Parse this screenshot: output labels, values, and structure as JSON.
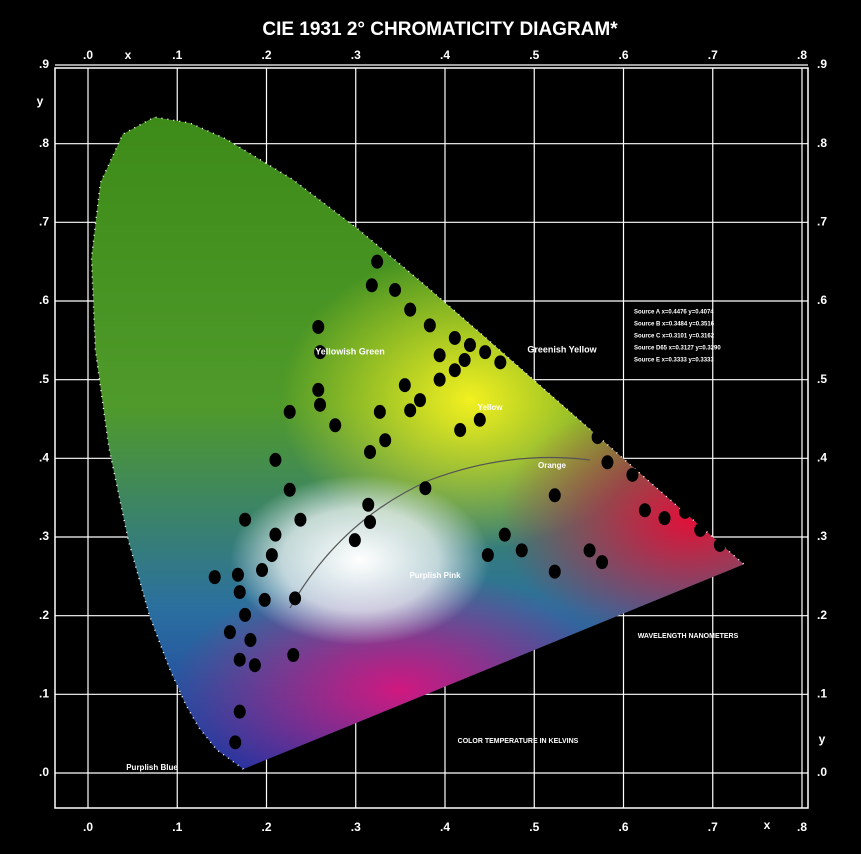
{
  "chart_data": {
    "type": "scatter",
    "title": "CIE 1931 2° CHROMATICITY DIAGRAM*",
    "x_label": "x",
    "y_label": "y",
    "xlim": [
      0,
      0.8
    ],
    "ylim": [
      0,
      0.9
    ],
    "xticks": [
      {
        "value": 0,
        "label": ".0"
      },
      {
        "value": 0.1,
        "label": ".1"
      },
      {
        "value": 0.2,
        "label": ".2"
      },
      {
        "value": 0.3,
        "label": ".3"
      },
      {
        "value": 0.4,
        "label": ".4"
      },
      {
        "value": 0.5,
        "label": ".5"
      },
      {
        "value": 0.6,
        "label": ".6"
      },
      {
        "value": 0.7,
        "label": ".7"
      },
      {
        "value": 0.8,
        "label": ".8"
      }
    ],
    "yticks": [
      {
        "value": 0,
        "label": ".0"
      },
      {
        "value": 0.1,
        "label": ".1"
      },
      {
        "value": 0.2,
        "label": ".2"
      },
      {
        "value": 0.3,
        "label": ".3"
      },
      {
        "value": 0.4,
        "label": ".4"
      },
      {
        "value": 0.5,
        "label": ".5"
      },
      {
        "value": 0.6,
        "label": ".6"
      },
      {
        "value": 0.7,
        "label": ".7"
      },
      {
        "value": 0.8,
        "label": ".8"
      },
      {
        "value": 0.9,
        "label": ".9"
      }
    ],
    "grid": true,
    "series": [
      {
        "color": "#000000",
        "x": [
          0.324,
          0.318,
          0.344,
          0.361,
          0.383,
          0.411,
          0.428,
          0.445,
          0.462,
          0.258,
          0.26,
          0.258,
          0.26,
          0.277,
          0.226,
          0.21,
          0.226,
          0.238,
          0.176,
          0.21,
          0.206,
          0.195,
          0.168,
          0.142,
          0.17,
          0.198,
          0.176,
          0.159,
          0.182,
          0.17,
          0.187,
          0.232,
          0.23,
          0.17,
          0.165,
          0.327,
          0.333,
          0.316,
          0.361,
          0.394,
          0.411,
          0.417,
          0.439,
          0.355,
          0.372,
          0.314,
          0.316,
          0.299,
          0.378,
          0.523,
          0.467,
          0.448,
          0.486,
          0.523,
          0.562,
          0.576,
          0.571,
          0.582,
          0.61,
          0.624,
          0.646,
          0.669,
          0.686,
          0.708,
          0.394,
          0.422
        ],
        "y": [
          0.65,
          0.62,
          0.614,
          0.589,
          0.569,
          0.553,
          0.544,
          0.535,
          0.522,
          0.567,
          0.535,
          0.487,
          0.468,
          0.442,
          0.459,
          0.398,
          0.36,
          0.322,
          0.322,
          0.303,
          0.277,
          0.258,
          0.252,
          0.249,
          0.23,
          0.22,
          0.201,
          0.179,
          0.169,
          0.144,
          0.137,
          0.222,
          0.15,
          0.078,
          0.039,
          0.459,
          0.423,
          0.408,
          0.461,
          0.5,
          0.512,
          0.436,
          0.449,
          0.493,
          0.474,
          0.341,
          0.319,
          0.296,
          0.362,
          0.353,
          0.303,
          0.277,
          0.283,
          0.256,
          0.283,
          0.268,
          0.427,
          0.395,
          0.379,
          0.334,
          0.324,
          0.332,
          0.309,
          0.29,
          0.531,
          0.525
        ]
      }
    ],
    "annotations": [
      "Yellowish Green",
      "Greenish Yellow",
      "Yellow",
      "Orange",
      "Purplish Pink",
      "Purplish Blue",
      "WAVELENGTH NANOMETERS",
      "COLOR TEMPERATURE IN KELVINS"
    ],
    "sources": [
      "Source A x=0.4476 y=0.4074",
      "Source B x=0.3484 y=0.3516",
      "Source C x=0.3101 y=0.3162",
      "Source D65 x=0.3127 y=0.3290",
      "Source E x=0.3333 y=0.3333"
    ]
  }
}
